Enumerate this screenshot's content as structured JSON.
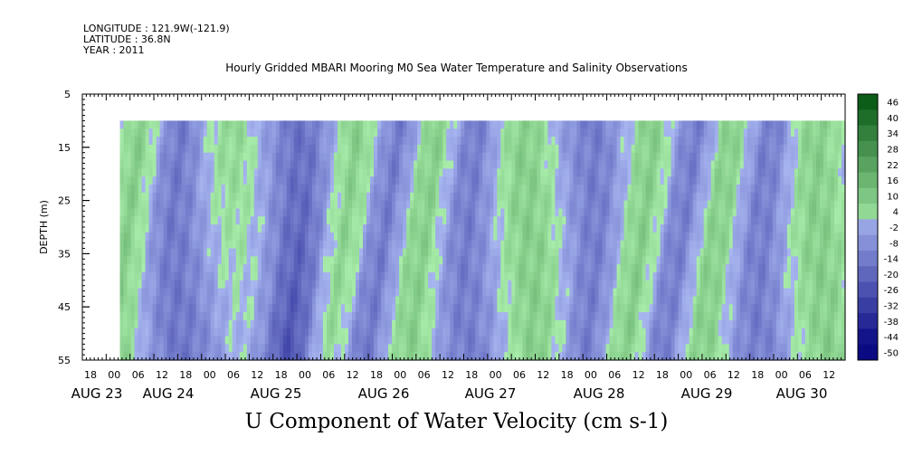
{
  "header": {
    "longitude": "LONGITUDE : 121.9W(-121.9)",
    "latitude": "LATITUDE : 36.8N",
    "year": "YEAR : 2011"
  },
  "chart_data": {
    "type": "heatmap",
    "title": "Hourly Gridded MBARI Mooring M0 Sea Water Temperature and Salinity Observations",
    "xlabel": "U Component of Water Velocity (cm s-1)",
    "ylabel": "DEPTH (m)",
    "ylim": [
      55,
      5
    ],
    "y_ticks": [
      5,
      15,
      25,
      35,
      45,
      55
    ],
    "data_depth_range": [
      10,
      55
    ],
    "x_hour_ticks": [
      "18",
      "00",
      "06",
      "12",
      "18",
      "00",
      "06",
      "12",
      "18",
      "00",
      "06",
      "12",
      "18",
      "00",
      "06",
      "12",
      "18",
      "00",
      "06",
      "12",
      "18",
      "00",
      "06",
      "12",
      "18",
      "00",
      "06",
      "12",
      "18",
      "00",
      "06",
      "12"
    ],
    "x_date_labels": [
      "AUG 23",
      "AUG 24",
      "AUG 25",
      "AUG 26",
      "AUG 27",
      "AUG 28",
      "AUG 29",
      "AUG 30"
    ],
    "colorbar_levels": [
      46,
      40,
      34,
      28,
      22,
      16,
      10,
      4,
      -2,
      -8,
      -14,
      -20,
      -26,
      -32,
      -38,
      -44,
      -50
    ],
    "colors": {
      "positive_strong": "#0a3a10",
      "positive_light": "#a9f0a9",
      "negative_light": "#a9b6f2",
      "negative_strong": "#0a0a6e"
    }
  }
}
